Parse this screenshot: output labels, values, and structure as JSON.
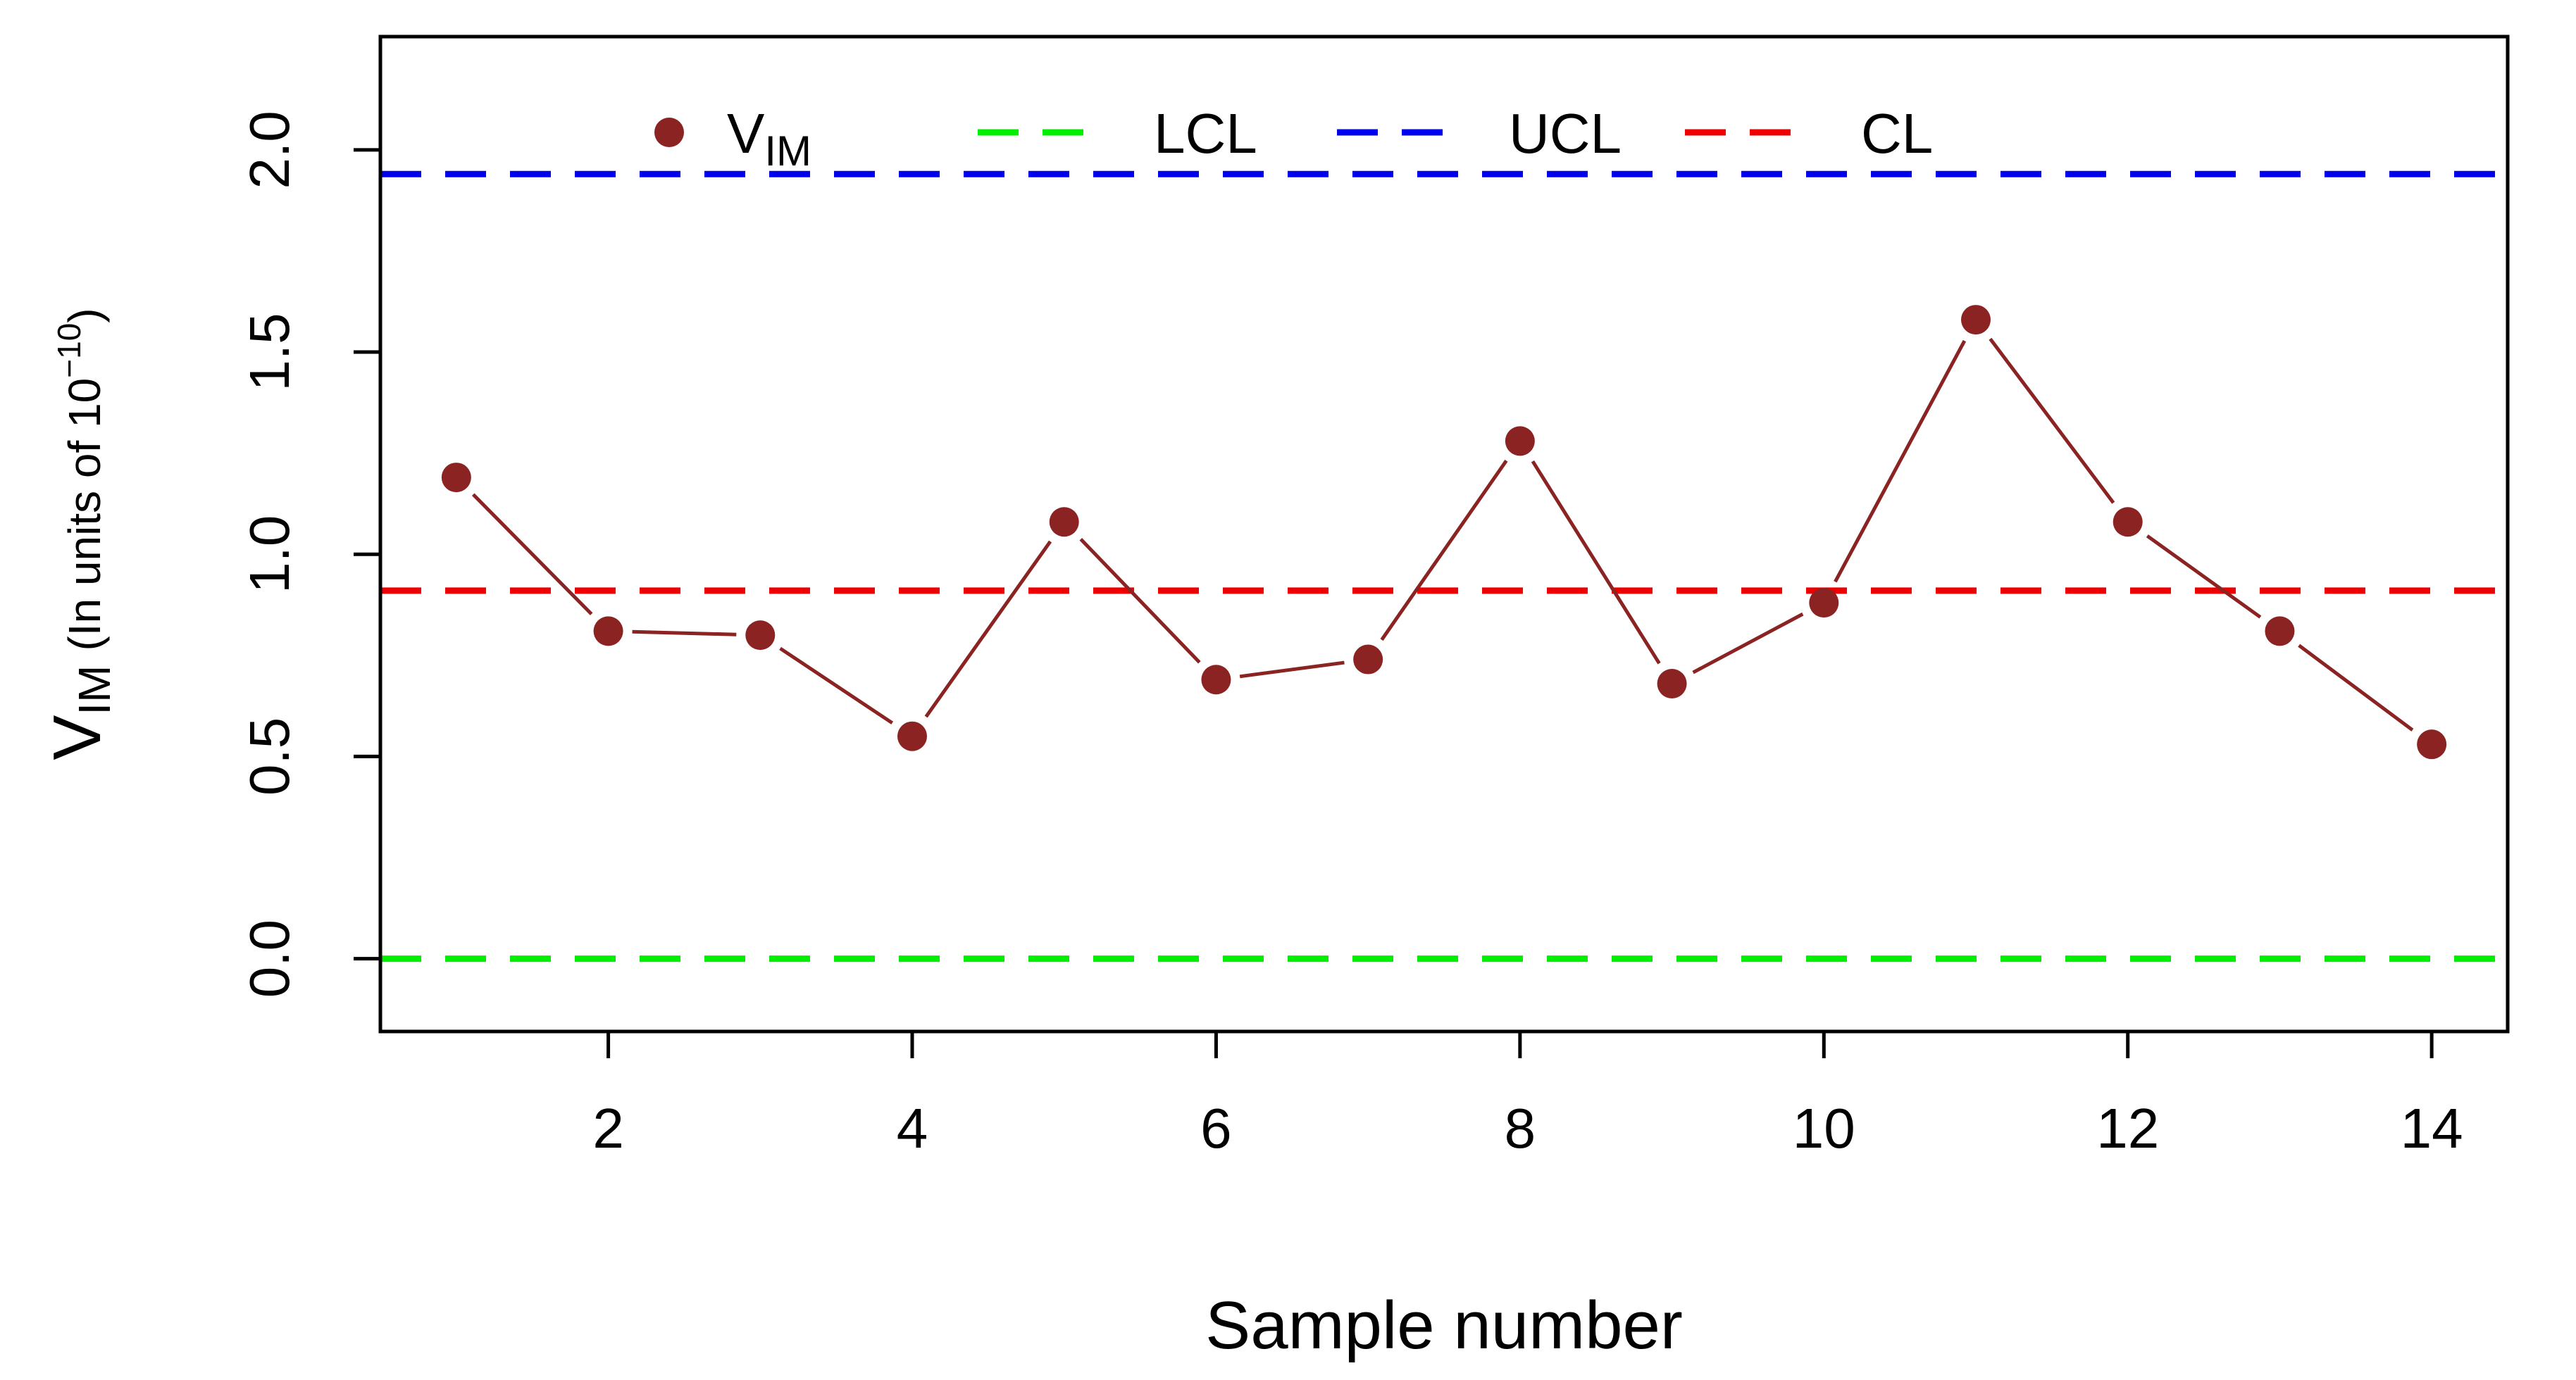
{
  "chart_data": {
    "type": "line",
    "title": "",
    "xlabel": "Sample number",
    "ylabel": {
      "main": "V",
      "main_sub": "IM",
      "paren_text": "(In units of 10",
      "exponent": "−10",
      "close": ")"
    },
    "xlim": [
      0.5,
      14.5
    ],
    "ylim": [
      -0.18,
      2.28
    ],
    "x_ticks": [
      2,
      4,
      6,
      8,
      10,
      12,
      14
    ],
    "x_tick_labels": [
      "2",
      "4",
      "6",
      "8",
      "10",
      "12",
      "14"
    ],
    "y_ticks": [
      0.0,
      0.5,
      1.0,
      1.5,
      2.0
    ],
    "y_tick_labels": [
      "0.0",
      "0.5",
      "1.0",
      "1.5",
      "2.0"
    ],
    "series": [
      {
        "name": "VIM",
        "legend_main": "V",
        "legend_sub": "IM",
        "color": "#8b2323",
        "x": [
          1,
          2,
          3,
          4,
          5,
          6,
          7,
          8,
          9,
          10,
          11,
          12,
          13,
          14
        ],
        "values": [
          1.19,
          0.81,
          0.8,
          0.55,
          1.08,
          0.69,
          0.74,
          1.28,
          0.68,
          0.88,
          1.58,
          1.08,
          0.81,
          0.53
        ]
      }
    ],
    "reference_lines": [
      {
        "name": "LCL",
        "value": 0.0,
        "color": "#00ee00",
        "style": "dashed"
      },
      {
        "name": "UCL",
        "value": 1.94,
        "color": "#0000ee",
        "style": "dashed"
      },
      {
        "name": "CL",
        "value": 0.91,
        "color": "#ee0000",
        "style": "dashed"
      }
    ],
    "legend": {
      "placement": "top-left",
      "orientation": "horizontal",
      "order": [
        "VIM",
        "LCL",
        "UCL",
        "CL"
      ]
    }
  }
}
